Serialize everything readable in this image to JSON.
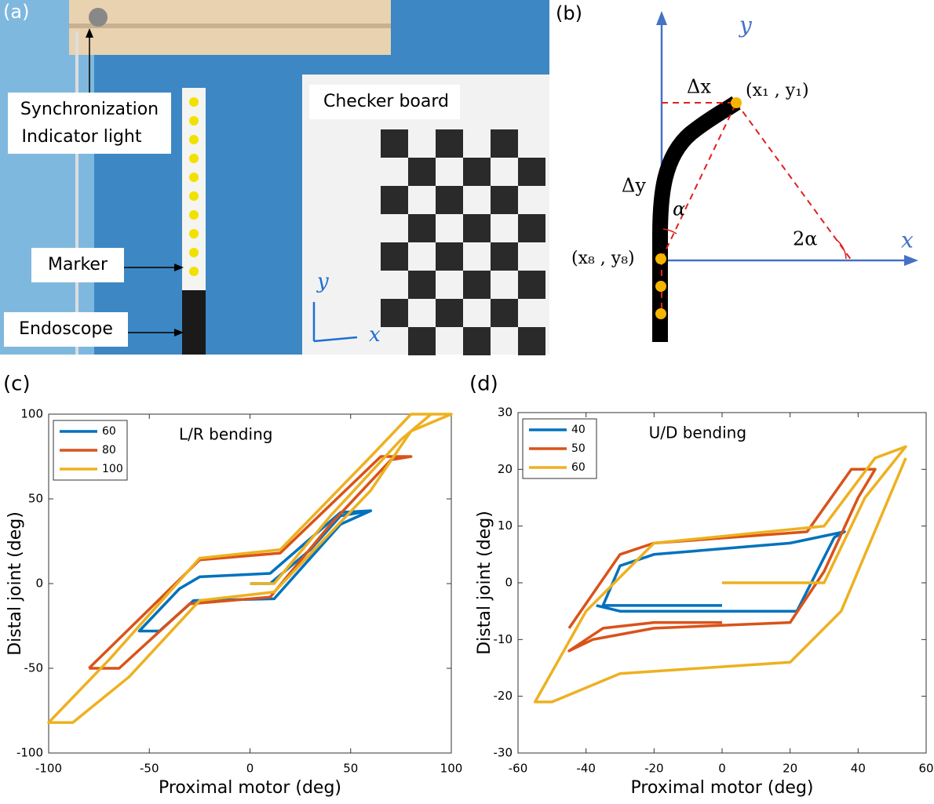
{
  "panel_a": {
    "label": "(a)",
    "sync_line1": "Synchronization",
    "sync_line2": "Indicator light",
    "checker": "Checker board",
    "marker": "Marker",
    "endoscope": "Endoscope",
    "axis_y": "y",
    "axis_x": "x"
  },
  "panel_b": {
    "label": "(b)",
    "axis_y": "y",
    "axis_x": "x",
    "dx": "Δx",
    "dy": "Δy",
    "p1": "(x₁ , y₁)",
    "p8": "(x₈ , y₈)",
    "alpha": "α",
    "two_alpha": "2α"
  },
  "chart_data": [
    {
      "type": "line",
      "panel_label": "(c)",
      "annotation": "L/R bending",
      "xlabel": "Proximal motor (deg)",
      "ylabel": "Distal joint (deg)",
      "xlim": [
        -100,
        100
      ],
      "ylim": [
        -100,
        100
      ],
      "xticks": [
        -100,
        -50,
        0,
        50,
        100
      ],
      "yticks": [
        -100,
        -50,
        0,
        50,
        100
      ],
      "legend": "upper left",
      "series": [
        {
          "name": "60",
          "color": "#0072bd",
          "x": [
            0,
            10,
            30,
            45,
            60,
            45,
            10,
            -25,
            -35,
            -55,
            -45,
            -28,
            12,
            45,
            60
          ],
          "y": [
            0,
            0,
            20,
            40,
            43,
            42,
            6,
            4,
            -3,
            -28,
            -28,
            -10,
            -9,
            35,
            43
          ]
        },
        {
          "name": "80",
          "color": "#d95319",
          "x": [
            -80,
            -65,
            -30,
            10,
            40,
            70,
            80,
            65,
            15,
            -25,
            -80
          ],
          "y": [
            -50,
            -50,
            -12,
            -8,
            35,
            73,
            75,
            75,
            18,
            14,
            -50
          ]
        },
        {
          "name": "100",
          "color": "#edb120",
          "x": [
            0,
            12,
            40,
            75,
            90,
            100,
            80,
            60,
            15,
            -25,
            -70,
            -100,
            -88,
            -60,
            -25,
            12,
            60,
            80,
            100
          ],
          "y": [
            0,
            0,
            40,
            85,
            100,
            100,
            100,
            75,
            20,
            15,
            -45,
            -82,
            -82,
            -55,
            -10,
            -5,
            55,
            90,
            100
          ]
        }
      ]
    },
    {
      "type": "line",
      "panel_label": "(d)",
      "annotation": "U/D bending",
      "xlabel": "Proximal motor (deg)",
      "ylabel": "Distal joint (deg)",
      "xlim": [
        -60,
        60
      ],
      "ylim": [
        -30,
        30
      ],
      "xticks": [
        -60,
        -40,
        -20,
        0,
        20,
        40,
        60
      ],
      "yticks": [
        -30,
        -20,
        -10,
        0,
        10,
        20,
        30
      ],
      "legend": "upper left",
      "series": [
        {
          "name": "40",
          "color": "#0072bd",
          "x": [
            0,
            -35,
            -30,
            -20,
            20,
            36,
            33,
            22,
            -30,
            -37
          ],
          "y": [
            -4,
            -4,
            3,
            5,
            7,
            9,
            8,
            -5,
            -5,
            -4
          ]
        },
        {
          "name": "50",
          "color": "#d95319",
          "x": [
            0,
            -20,
            -35,
            -45,
            -38,
            -20,
            20,
            30,
            40,
            45,
            38,
            25,
            -20,
            -30,
            -45
          ],
          "y": [
            -7,
            -7,
            -8,
            -12,
            -10,
            -8,
            -7,
            2,
            15,
            20,
            20,
            9,
            7,
            5,
            -8
          ]
        },
        {
          "name": "60",
          "color": "#edb120",
          "x": [
            0,
            30,
            42,
            54,
            45,
            30,
            -20,
            -40,
            -55,
            -50,
            -30,
            20,
            35,
            54
          ],
          "y": [
            0,
            0,
            15,
            24,
            22,
            10,
            7,
            -5,
            -21,
            -21,
            -16,
            -14,
            -5,
            22
          ]
        }
      ]
    }
  ]
}
